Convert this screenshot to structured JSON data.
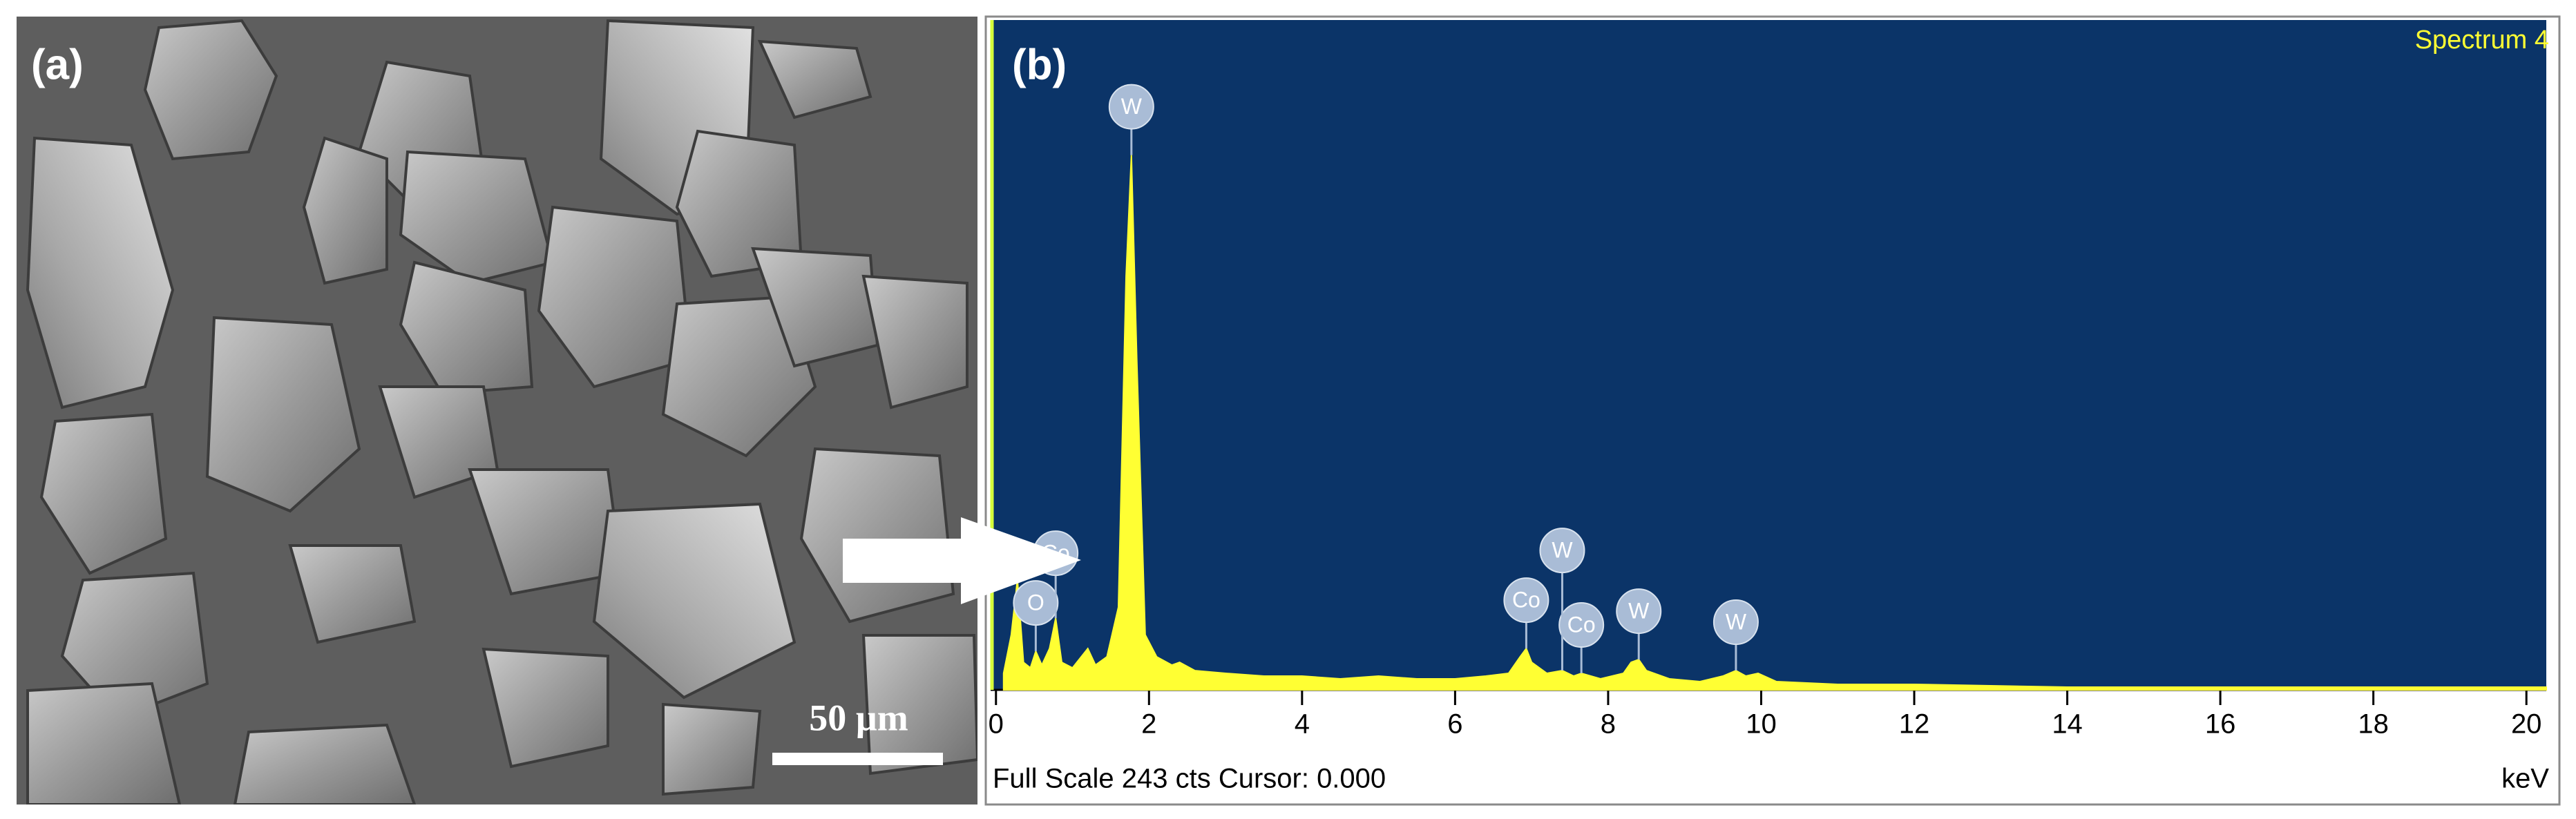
{
  "panel_a": {
    "label": "(a)",
    "scale_bar": "50 µm"
  },
  "chart_data": {
    "type": "area",
    "label": "(b)",
    "title": "Spectrum 4",
    "x_label": "keV",
    "footer": "Full Scale 243 cts Cursor: 0.000",
    "color": "#ffff33",
    "background": "#0b3468",
    "x": [
      0.1,
      0.2,
      0.28,
      0.36,
      0.45,
      0.52,
      0.6,
      0.7,
      0.78,
      0.86,
      1.0,
      1.2,
      1.3,
      1.45,
      1.6,
      1.7,
      1.77,
      1.84,
      1.95,
      2.1,
      2.3,
      2.4,
      2.6,
      3.0,
      3.5,
      4.0,
      4.5,
      5.0,
      5.5,
      6.0,
      6.4,
      6.7,
      6.85,
      6.93,
      7.0,
      7.2,
      7.4,
      7.55,
      7.65,
      7.9,
      8.2,
      8.3,
      8.4,
      8.5,
      8.8,
      9.2,
      9.5,
      9.67,
      9.8,
      9.96,
      10.2,
      11,
      12,
      14,
      16,
      18,
      20,
      20.26
    ],
    "values": [
      6,
      20,
      40,
      10,
      8,
      14,
      9,
      15,
      26,
      10,
      8,
      15,
      9,
      12,
      30,
      150,
      194,
      120,
      20,
      12,
      9,
      10,
      7,
      6,
      5,
      5,
      4,
      5,
      4,
      4,
      5,
      6,
      12,
      15,
      10,
      6,
      7,
      5,
      6,
      4,
      6,
      10,
      11,
      7,
      4,
      3,
      5,
      7,
      5,
      6,
      3,
      2,
      2,
      1,
      1,
      1,
      1,
      1
    ],
    "xlim": [
      -0.07,
      20.26
    ],
    "ylim": [
      0,
      243
    ],
    "xticks": [
      0,
      2,
      4,
      6,
      8,
      10,
      12,
      14,
      16,
      18,
      20
    ],
    "annotations": [
      {
        "text": "W",
        "x": 1.77
      },
      {
        "text": "O",
        "x": 0.52
      },
      {
        "text": "Co",
        "x": 0.78
      },
      {
        "text": "Co",
        "x": 6.93
      },
      {
        "text": "Co",
        "x": 7.65
      },
      {
        "text": "W",
        "x": 7.4
      },
      {
        "text": "W",
        "x": 8.4
      },
      {
        "text": "W",
        "x": 9.67
      }
    ]
  }
}
